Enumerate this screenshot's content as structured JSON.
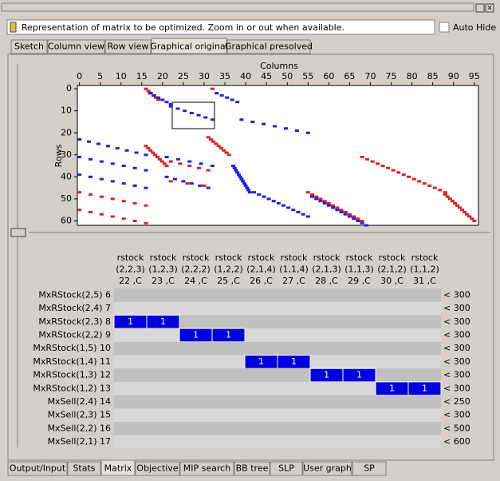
{
  "window": {
    "info_text": "Representation of matrix to be optimized. Zoom in or out when available.",
    "auto_hide": "Auto Hide"
  },
  "top_tabs": [
    {
      "label": "Sketch",
      "active": false
    },
    {
      "label": "Column view",
      "active": false
    },
    {
      "label": "Row view",
      "active": false
    },
    {
      "label": "Graphical original",
      "active": true
    },
    {
      "label": "Graphical presolved",
      "active": false
    }
  ],
  "plot": {
    "x_label": "Columns",
    "y_label": "Rows",
    "xlim": [
      -0.5,
      96
    ],
    "ylim": [
      -1.5,
      62
    ],
    "xticks": [
      0,
      5,
      10,
      15,
      20,
      25,
      30,
      35,
      40,
      45,
      50,
      55,
      60,
      65,
      70,
      75,
      80,
      85,
      90,
      95
    ],
    "yticks": [
      0,
      10,
      20,
      30,
      40,
      50,
      60
    ],
    "nonzero_runs": [
      {
        "row_start": 0,
        "col_start": 16,
        "row_end": 5,
        "col_end": 19,
        "color": "#e02020"
      },
      {
        "row_start": 2,
        "col_start": 17,
        "row_end": 7,
        "col_end": 22,
        "color": "#2020e0"
      },
      {
        "row_start": 8,
        "col_start": 22,
        "row_end": 14,
        "col_end": 32,
        "color": "#2020e0"
      },
      {
        "row_start": 0,
        "col_start": 32,
        "row_end": 0,
        "col_end": 32,
        "color": "#e02020"
      },
      {
        "row_start": 2,
        "col_start": 33,
        "row_end": 6,
        "col_end": 38,
        "color": "#2020e0"
      },
      {
        "row_start": 14,
        "col_start": 39,
        "row_end": 20,
        "col_end": 55,
        "color": "#2020e0"
      },
      {
        "row_start": 22,
        "col_start": 31,
        "row_end": 30,
        "col_end": 36,
        "color": "#e02020"
      },
      {
        "row_start": 26,
        "col_start": 16,
        "row_end": 35,
        "col_end": 21,
        "color": "#e02020"
      },
      {
        "row_start": 31,
        "col_start": 21,
        "row_end": 35,
        "col_end": 32,
        "color": "#2020e0"
      },
      {
        "row_start": 33,
        "col_start": 22,
        "row_end": 37,
        "col_end": 31,
        "color": "#e02020"
      },
      {
        "row_start": 40,
        "col_start": 21,
        "row_end": 45,
        "col_end": 31,
        "color": "#2020e0"
      },
      {
        "row_start": 42,
        "col_start": 22,
        "row_end": 44,
        "col_end": 30,
        "color": "#e02020"
      },
      {
        "row_start": 23,
        "col_start": 0,
        "row_end": 30,
        "col_end": 16,
        "color": "#2020e0"
      },
      {
        "row_start": 31,
        "col_start": 0,
        "row_end": 37,
        "col_end": 16,
        "color": "#2020e0"
      },
      {
        "row_start": 39,
        "col_start": 0,
        "row_end": 45,
        "col_end": 16,
        "color": "#2020e0"
      },
      {
        "row_start": 47,
        "col_start": 0,
        "row_end": 53,
        "col_end": 16,
        "color": "#e02020"
      },
      {
        "row_start": 55,
        "col_start": 0,
        "row_end": 61,
        "col_end": 16,
        "color": "#e02020"
      },
      {
        "row_start": 35,
        "col_start": 37,
        "row_end": 47,
        "col_end": 41,
        "color": "#2020e0"
      },
      {
        "row_start": 47,
        "col_start": 42,
        "row_end": 58,
        "col_end": 55,
        "color": "#2020e0"
      },
      {
        "row_start": 47,
        "col_start": 55,
        "row_end": 60,
        "col_end": 68,
        "color": "#e02020"
      },
      {
        "row_start": 49,
        "col_start": 56,
        "row_end": 62,
        "col_end": 69,
        "color": "#2020e0"
      },
      {
        "row_start": 31,
        "col_start": 68,
        "row_end": 47,
        "col_end": 88,
        "color": "#e02020"
      },
      {
        "row_start": 48,
        "col_start": 88,
        "row_end": 60,
        "col_end": 95,
        "color": "#e02020"
      }
    ]
  },
  "table": {
    "columns": [
      [
        "rstock",
        "(2,2,3)",
        "22 ,C"
      ],
      [
        "rstock",
        "(1,2,3)",
        "23 ,C"
      ],
      [
        "rstock",
        "(2,2,2)",
        "24 ,C"
      ],
      [
        "rstock",
        "(1,2,2)",
        "25 ,C"
      ],
      [
        "rstock",
        "(2,1,4)",
        "26 ,C"
      ],
      [
        "rstock",
        "(1,1,4)",
        "27 ,C"
      ],
      [
        "rstock",
        "(2,1,3)",
        "28 ,C"
      ],
      [
        "rstock",
        "(1,1,3)",
        "29 ,C"
      ],
      [
        "rstock",
        "(2,1,2)",
        "30 ,C"
      ],
      [
        "rstock",
        "(1,1,2)",
        "31 ,C"
      ]
    ],
    "rows": [
      {
        "label": "MxRStock(2,5) 6",
        "cells": [
          null,
          null,
          null,
          null,
          null,
          null,
          null,
          null,
          null,
          null
        ],
        "rhs": "< 300"
      },
      {
        "label": "MxRStock(2,4) 7",
        "cells": [
          null,
          null,
          null,
          null,
          null,
          null,
          null,
          null,
          null,
          null
        ],
        "rhs": "< 300"
      },
      {
        "label": "MxRStock(2,3) 8",
        "cells": [
          "1",
          "1",
          null,
          null,
          null,
          null,
          null,
          null,
          null,
          null
        ],
        "rhs": "< 300"
      },
      {
        "label": "MxRStock(2,2) 9",
        "cells": [
          null,
          null,
          "1",
          "1",
          null,
          null,
          null,
          null,
          null,
          null
        ],
        "rhs": "< 300"
      },
      {
        "label": "MxRStock(1,5) 10",
        "cells": [
          null,
          null,
          null,
          null,
          null,
          null,
          null,
          null,
          null,
          null
        ],
        "rhs": "< 300"
      },
      {
        "label": "MxRStock(1,4) 11",
        "cells": [
          null,
          null,
          null,
          null,
          "1",
          "1",
          null,
          null,
          null,
          null
        ],
        "rhs": "< 300"
      },
      {
        "label": "MxRStock(1,3) 12",
        "cells": [
          null,
          null,
          null,
          null,
          null,
          null,
          "1",
          "1",
          null,
          null
        ],
        "rhs": "< 300"
      },
      {
        "label": "MxRStock(1,2) 13",
        "cells": [
          null,
          null,
          null,
          null,
          null,
          null,
          null,
          null,
          "1",
          "1"
        ],
        "rhs": "< 300"
      },
      {
        "label": "MxSell(2,4) 14",
        "cells": [
          null,
          null,
          null,
          null,
          null,
          null,
          null,
          null,
          null,
          null
        ],
        "rhs": "< 250"
      },
      {
        "label": "MxSell(2,3) 15",
        "cells": [
          null,
          null,
          null,
          null,
          null,
          null,
          null,
          null,
          null,
          null
        ],
        "rhs": "< 300"
      },
      {
        "label": "MxSell(2,2) 16",
        "cells": [
          null,
          null,
          null,
          null,
          null,
          null,
          null,
          null,
          null,
          null
        ],
        "rhs": "< 500"
      },
      {
        "label": "MxSell(2,1) 17",
        "cells": [
          null,
          null,
          null,
          null,
          null,
          null,
          null,
          null,
          null,
          null
        ],
        "rhs": "< 600"
      }
    ]
  },
  "bottom_tabs": [
    {
      "label": "Output/Input",
      "active": false
    },
    {
      "label": "Stats",
      "active": false
    },
    {
      "label": "Matrix",
      "active": true
    },
    {
      "label": "Objective",
      "active": false
    },
    {
      "label": "MIP search",
      "active": false
    },
    {
      "label": "BB tree",
      "active": false
    },
    {
      "label": "SLP",
      "active": false
    },
    {
      "label": "User graph",
      "active": false
    },
    {
      "label": "SP",
      "active": false
    }
  ]
}
